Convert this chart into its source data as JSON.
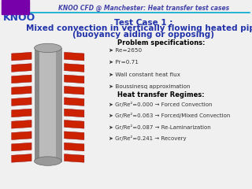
{
  "bg_color": "#f0f0f0",
  "header_text": "KNOO CFD @ Manchester: Heat transfer test cases",
  "header_color": "#4444aa",
  "header_line_color": "#00aacc",
  "title_line1": "Test Case 1 :",
  "title_line2": "Mixed convection in vertically flowing heated pipe",
  "title_line3": "(buoyancy aiding or opposing)",
  "title_color": "#2233aa",
  "logo_text": "KNOO",
  "logo_color": "#2244bb",
  "problem_spec_title": "Problem specifications:",
  "problem_specs": [
    "Re=2650",
    "Pr=0.71",
    "Wall constant heat flux",
    "Boussinesq approximation"
  ],
  "regime_title": "Heat transfer Regimes:",
  "regimes": [
    "Gr/Re²=0.000 → Forced Convection",
    "Gr/Re²=0.063 → Forced/Mixed Convection",
    "Gr/Re²=0.087 → Re-Laminarization",
    "Gr/Re²=0.241 → Recovery"
  ],
  "text_color": "#333333",
  "bold_color": "#000000"
}
